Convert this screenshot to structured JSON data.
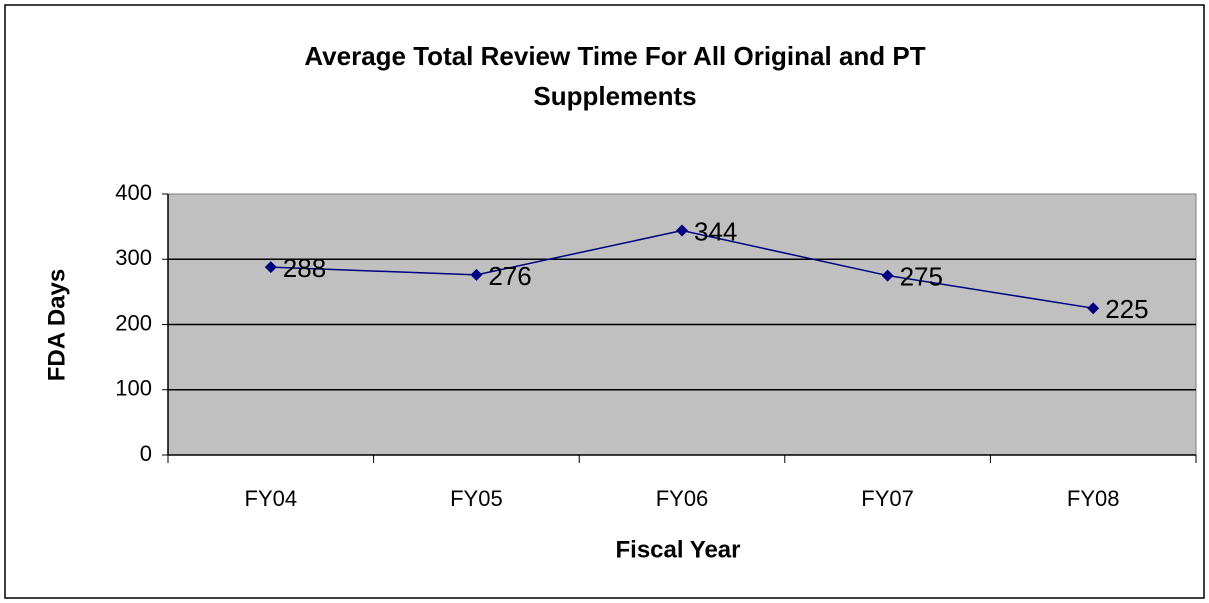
{
  "chart_data": {
    "type": "line",
    "title": "Average Total Review Time For All Original and PT Supplements",
    "x_label": "Fiscal Year",
    "y_label": "FDA Days",
    "categories": [
      "FY04",
      "FY05",
      "FY06",
      "FY07",
      "FY08"
    ],
    "series": [
      {
        "name": "FDA Days",
        "color": "#000080",
        "values": [
          288,
          276,
          344,
          275,
          225
        ]
      }
    ],
    "ylim": [
      0,
      400
    ],
    "yticks": [
      0,
      100,
      200,
      300,
      400
    ],
    "grid": true
  }
}
